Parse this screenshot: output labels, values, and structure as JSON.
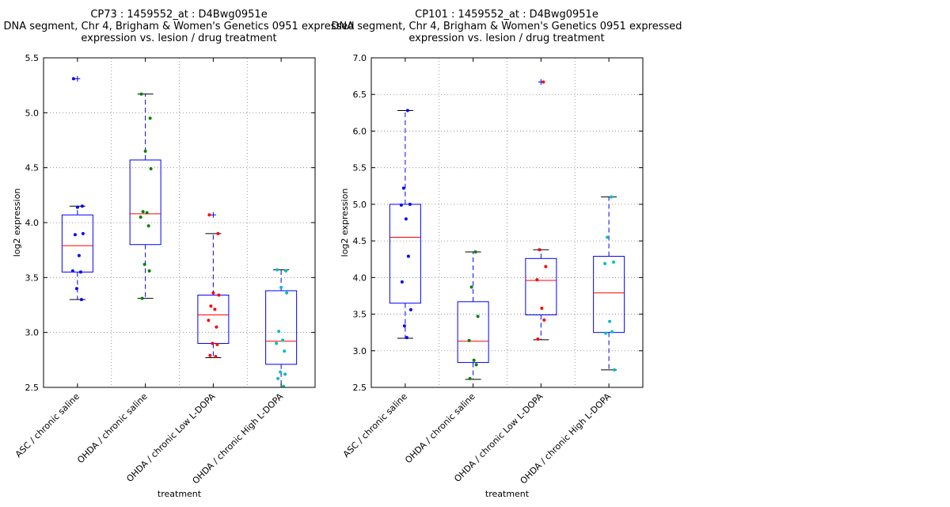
{
  "figure": {
    "background": "#ffffff"
  },
  "chart_data": [
    {
      "type": "box",
      "title_lines": [
        "CP73 : 1459552_at : D4Bwg0951e",
        "DNA segment, Chr 4, Brigham & Women's Genetics 0951 expressed",
        "expression vs. lesion / drug treatment"
      ],
      "xlabel": "treatment",
      "ylabel": "log2 expression",
      "ylim": [
        2.5,
        5.5
      ],
      "yticks": [
        2.5,
        3.0,
        3.5,
        4.0,
        4.5,
        5.0,
        5.5
      ],
      "ytick_labels": [
        "2.5",
        "3.0",
        "3.5",
        "4.0",
        "4.5",
        "5.0",
        "5.5"
      ],
      "grid": true,
      "categories": [
        "ASC / chronic saline",
        "OHDA / chronic saline",
        "OHDA / chronic Low L-DOPA",
        "OHDA / chronic High L-DOPA"
      ],
      "point_colors": [
        "#0000ff",
        "#008000",
        "#ff0000",
        "#00bfbf"
      ],
      "boxes": [
        {
          "whislo": 3.3,
          "q1": 3.55,
          "med": 3.79,
          "q3": 4.07,
          "whishi": 4.15,
          "fliers": [
            5.31
          ]
        },
        {
          "whislo": 3.31,
          "q1": 3.8,
          "med": 4.08,
          "q3": 4.57,
          "whishi": 5.17,
          "fliers": []
        },
        {
          "whislo": 2.77,
          "q1": 2.9,
          "med": 3.16,
          "q3": 3.34,
          "whishi": 3.9,
          "fliers": [
            4.07
          ]
        },
        {
          "whislo": 2.5,
          "q1": 2.71,
          "med": 2.92,
          "q3": 3.38,
          "whishi": 3.57,
          "fliers": []
        }
      ],
      "points": [
        [
          5.31,
          4.15,
          4.14,
          3.9,
          3.89,
          3.7,
          3.56,
          3.55,
          3.4,
          3.3
        ],
        [
          5.17,
          4.95,
          4.65,
          4.49,
          4.1,
          4.09,
          4.05,
          3.97,
          3.62,
          3.56,
          3.31
        ],
        [
          4.07,
          3.9,
          3.36,
          3.34,
          3.24,
          3.21,
          3.11,
          3.05,
          2.9,
          2.89,
          2.79,
          2.78
        ],
        [
          3.57,
          3.56,
          3.41,
          3.36,
          3.01,
          2.93,
          2.9,
          2.83,
          2.64,
          2.62,
          2.58,
          2.51
        ]
      ]
    },
    {
      "type": "box",
      "title_lines": [
        "CP101 : 1459552_at : D4Bwg0951e",
        "DNA segment, Chr 4, Brigham & Women's Genetics 0951 expressed",
        "expression vs. lesion / drug treatment"
      ],
      "xlabel": "treatment",
      "ylabel": "log2 expression",
      "ylim": [
        2.5,
        7.0
      ],
      "yticks": [
        2.5,
        3.0,
        3.5,
        4.0,
        4.5,
        5.0,
        5.5,
        6.0,
        6.5,
        7.0
      ],
      "ytick_labels": [
        "2.5",
        "3.0",
        "3.5",
        "4.0",
        "4.5",
        "5.0",
        "5.5",
        "6.0",
        "6.5",
        "7.0"
      ],
      "grid": true,
      "categories": [
        "ASC / chronic saline",
        "OHDA / chronic saline",
        "OHDA / chronic Low L-DOPA",
        "OHDA / chronic High L-DOPA"
      ],
      "point_colors": [
        "#0000ff",
        "#008000",
        "#ff0000",
        "#00bfbf"
      ],
      "boxes": [
        {
          "whislo": 3.17,
          "q1": 3.65,
          "med": 4.55,
          "q3": 5.0,
          "whishi": 6.28,
          "fliers": []
        },
        {
          "whislo": 2.61,
          "q1": 2.84,
          "med": 3.13,
          "q3": 3.67,
          "whishi": 4.35,
          "fliers": []
        },
        {
          "whislo": 3.15,
          "q1": 3.49,
          "med": 3.96,
          "q3": 4.26,
          "whishi": 4.38,
          "fliers": [
            6.67
          ]
        },
        {
          "whislo": 2.74,
          "q1": 3.25,
          "med": 3.79,
          "q3": 4.29,
          "whishi": 5.1,
          "fliers": []
        }
      ],
      "points": [
        [
          6.28,
          5.22,
          5.0,
          4.99,
          4.8,
          4.29,
          3.94,
          3.56,
          3.34,
          3.18
        ],
        [
          4.35,
          3.87,
          3.47,
          3.14,
          2.87,
          2.81,
          2.62
        ],
        [
          6.67,
          4.38,
          4.15,
          3.97,
          3.58,
          3.42,
          3.16
        ],
        [
          5.1,
          4.55,
          4.21,
          4.19,
          3.4,
          3.26,
          3.24,
          2.74
        ]
      ]
    }
  ]
}
